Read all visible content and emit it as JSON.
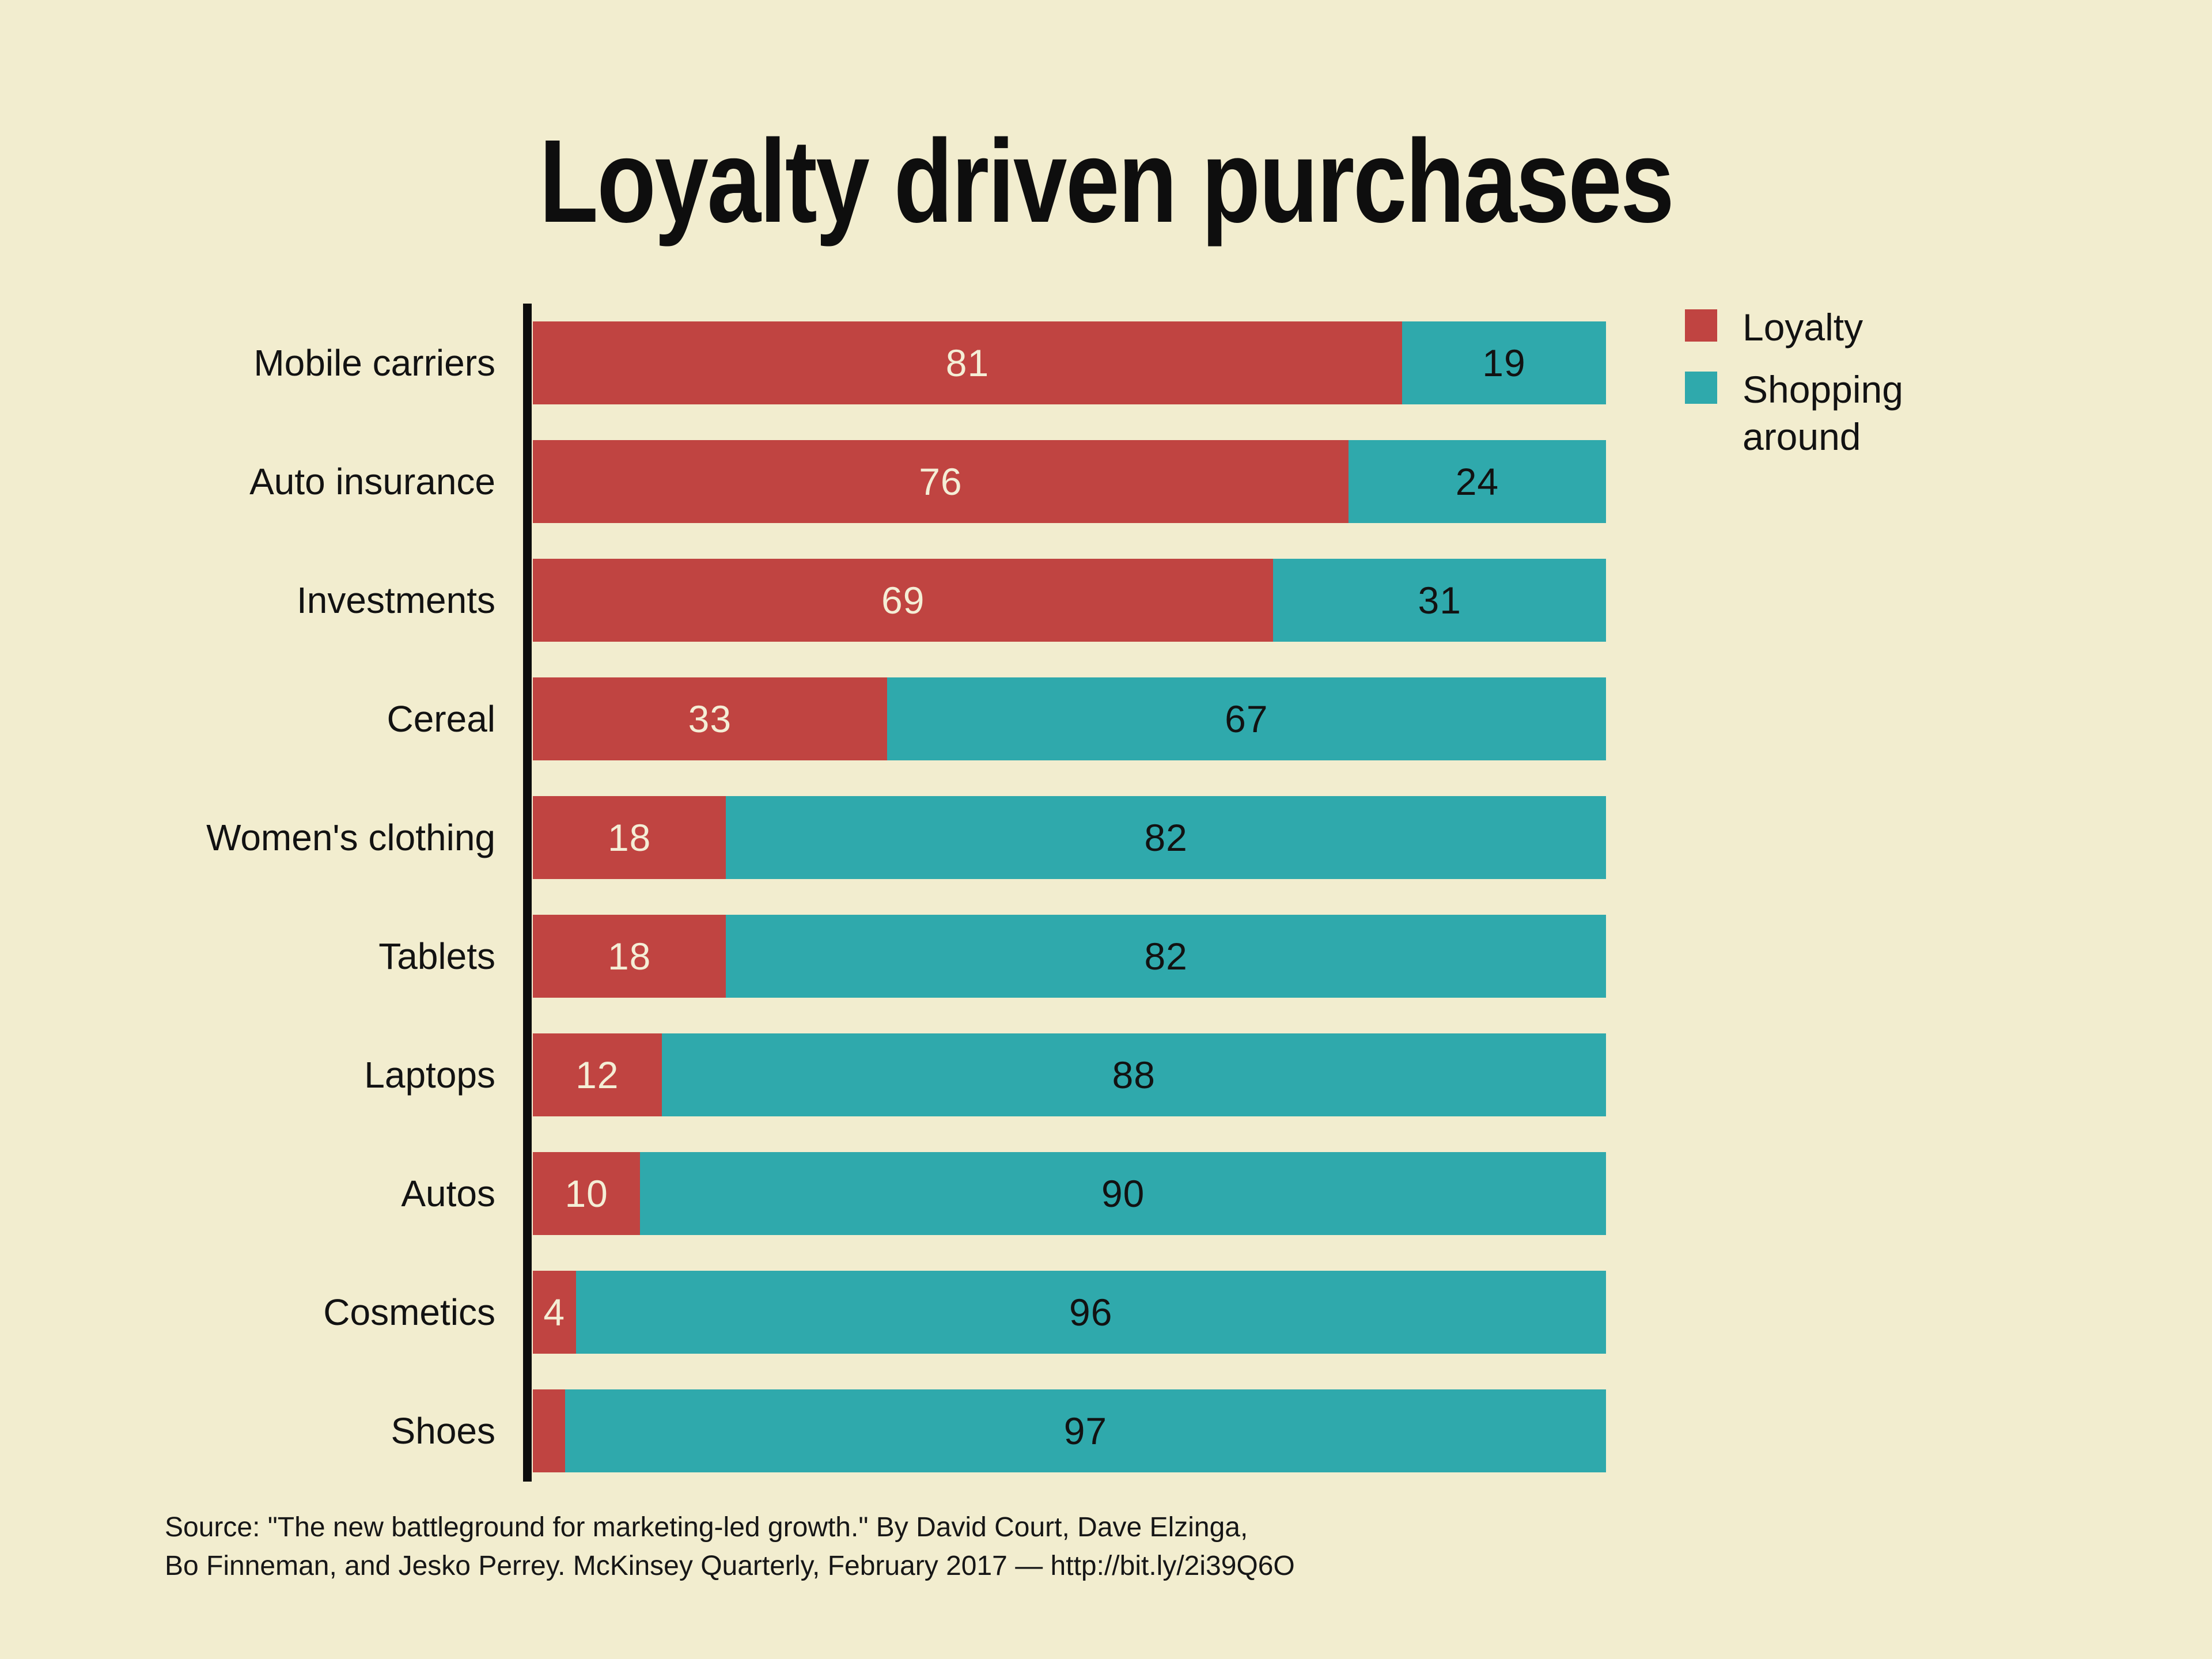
{
  "title": "Loyalty driven purchases",
  "colors": {
    "background": "#f2edcf",
    "loyalty_red": "#c04441",
    "shopping_teal": "#2fa9ac",
    "axis_black": "#0d0d0d",
    "label_on_red": "#f4eed6",
    "label_on_teal": "#121212"
  },
  "legend": [
    {
      "label": "Loyalty",
      "color": "#c04441"
    },
    {
      "label": "Shopping around",
      "color": "#2fa9ac"
    }
  ],
  "source": {
    "line1": "Source: \"The new battleground for marketing-led growth.\" By David Court, Dave Elzinga,",
    "line2": "Bo Finneman, and Jesko Perrey. McKinsey Quarterly, February 2017 — http://bit.ly/2i39Q6O"
  },
  "chart_data": {
    "type": "bar",
    "stacked": true,
    "orientation": "horizontal",
    "title": "Loyalty driven purchases",
    "xlim": [
      0,
      100
    ],
    "grid": false,
    "legend_position": "top-right",
    "categories": [
      "Mobile carriers",
      "Auto insurance",
      "Investments",
      "Cereal",
      "Women's clothing",
      "Tablets",
      "Laptops",
      "Autos",
      "Cosmetics",
      "Shoes"
    ],
    "series": [
      {
        "name": "Loyalty",
        "color": "#c04441",
        "values": [
          81,
          76,
          69,
          33,
          18,
          18,
          12,
          10,
          4,
          3
        ]
      },
      {
        "name": "Shopping around",
        "color": "#2fa9ac",
        "values": [
          19,
          24,
          31,
          67,
          82,
          82,
          88,
          90,
          96,
          97
        ]
      }
    ],
    "value_label_note": "labels shown inside segments; Shoes loyalty value 3 too narrow, label hidden"
  }
}
